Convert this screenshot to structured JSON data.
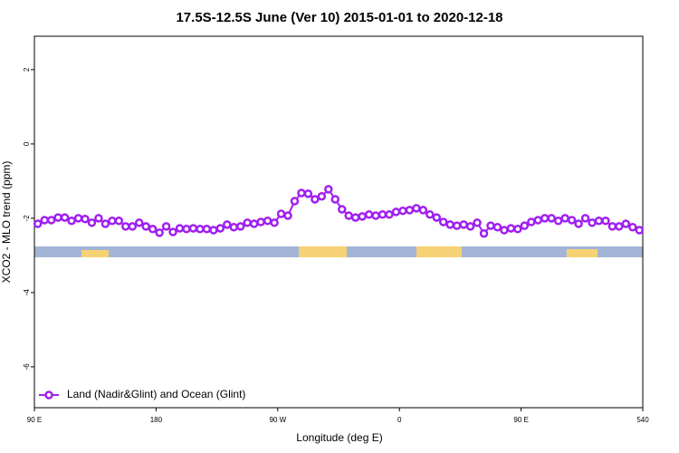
{
  "chart_data": {
    "type": "line",
    "title": "17.5S-12.5S June (Ver 10)   2015-01-01 to 2020-12-18",
    "xlabel": "Longitude (deg E)",
    "ylabel": "XCO2 - MLO trend (ppm)",
    "xlim": [
      90,
      540
    ],
    "xticks": [
      {
        "value": 90,
        "label": "90 E"
      },
      180,
      {
        "value": 270,
        "label": "90 W"
      },
      {
        "value": 360,
        "label": "0"
      },
      {
        "value": 450,
        "label": "90 E"
      },
      540
    ],
    "ylim": [
      -7.1,
      2.9
    ],
    "yticks": [
      2,
      0,
      -2,
      -4,
      -6
    ],
    "legend": "bottom-left",
    "x": [
      92.5,
      97.5,
      102.5,
      107.5,
      112.5,
      117.5,
      122.5,
      127.5,
      132.5,
      137.5,
      142.5,
      147.5,
      152.5,
      157.5,
      162.5,
      167.5,
      172.5,
      177.5,
      182.5,
      187.5,
      192.5,
      197.5,
      202.5,
      207.5,
      212.5,
      217.5,
      222.5,
      227.5,
      232.5,
      237.5,
      242.5,
      247.5,
      252.5,
      257.5,
      262.5,
      267.5,
      272.5,
      277.5,
      282.5,
      287.5,
      292.5,
      297.5,
      302.5,
      307.5,
      312.5,
      317.5,
      322.5,
      327.5,
      332.5,
      337.5,
      342.5,
      347.5,
      352.5,
      357.5,
      362.5,
      367.5,
      372.5,
      377.5,
      382.5,
      387.5,
      392.5,
      397.5,
      402.5,
      407.5,
      412.5,
      417.5,
      422.5,
      427.5,
      432.5,
      437.5,
      442.5,
      447.5,
      452.5,
      457.5,
      462.5,
      467.5,
      472.5,
      477.5,
      482.5,
      487.5,
      492.5,
      497.5,
      502.5,
      507.5,
      512.5,
      517.5,
      522.5,
      527.5,
      532.5,
      537.5
    ],
    "series": [
      {
        "name": "Land (Nadir&Glint) and Ocean (Glint)",
        "color": "#a020f0",
        "values": [
          -2.15,
          -2.05,
          -2.05,
          -1.98,
          -1.98,
          -2.07,
          -2.0,
          -2.02,
          -2.12,
          -2.0,
          -2.15,
          -2.07,
          -2.07,
          -2.22,
          -2.22,
          -2.12,
          -2.22,
          -2.29,
          -2.39,
          -2.22,
          -2.37,
          -2.27,
          -2.29,
          -2.27,
          -2.29,
          -2.29,
          -2.32,
          -2.27,
          -2.17,
          -2.24,
          -2.22,
          -2.12,
          -2.15,
          -2.1,
          -2.07,
          -2.12,
          -1.88,
          -1.93,
          -1.54,
          -1.32,
          -1.34,
          -1.49,
          -1.41,
          -1.22,
          -1.49,
          -1.76,
          -1.93,
          -1.98,
          -1.95,
          -1.9,
          -1.93,
          -1.9,
          -1.9,
          -1.83,
          -1.8,
          -1.78,
          -1.73,
          -1.78,
          -1.9,
          -1.98,
          -2.1,
          -2.17,
          -2.2,
          -2.17,
          -2.22,
          -2.12,
          -2.41,
          -2.2,
          -2.24,
          -2.32,
          -2.27,
          -2.29,
          -2.2,
          -2.1,
          -2.05,
          -2.0,
          -2.0,
          -2.07,
          -2.0,
          -2.05,
          -2.15,
          -2.0,
          -2.12,
          -2.07,
          -2.07,
          -2.22,
          -2.22,
          -2.15,
          -2.24,
          -2.32
        ]
      }
    ]
  }
}
